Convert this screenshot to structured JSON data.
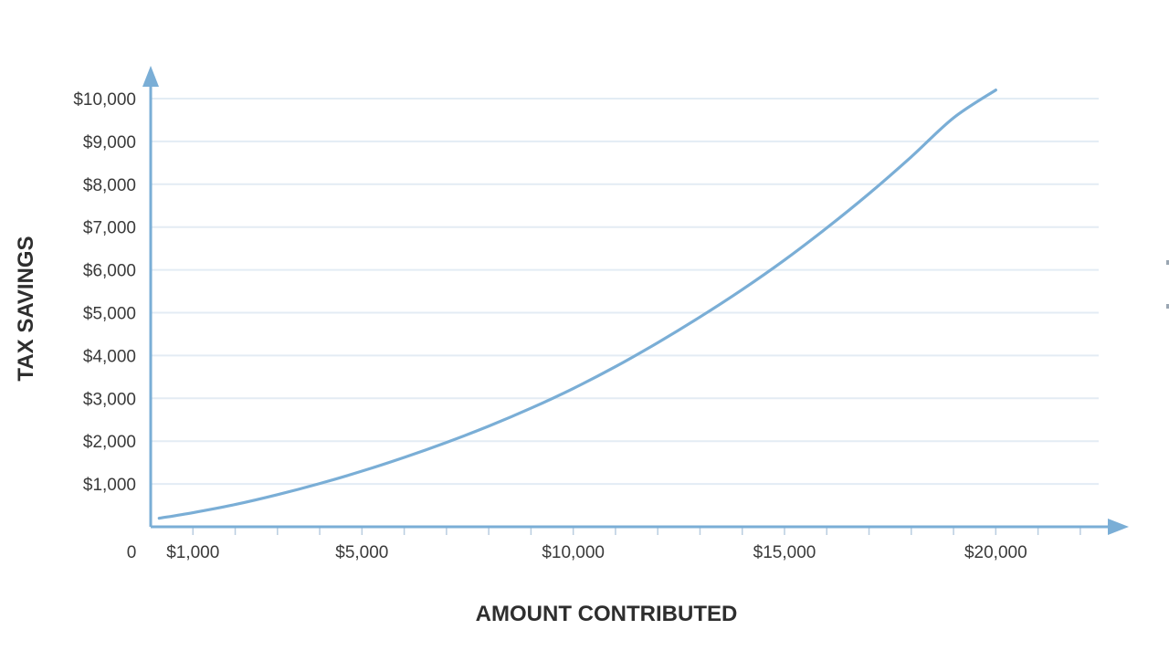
{
  "chart_data": {
    "type": "line",
    "xlabel": "AMOUNT CONTRIBUTED",
    "ylabel": "TAX SAVINGS",
    "origin_label": "0",
    "xlim": [
      0,
      22500
    ],
    "ylim": [
      0,
      10000
    ],
    "x_ticks": [
      {
        "value": 1000,
        "label": "$1,000"
      },
      {
        "value": 5000,
        "label": "$5,000"
      },
      {
        "value": 10000,
        "label": "$10,000"
      },
      {
        "value": 15000,
        "label": "$15,000"
      },
      {
        "value": 20000,
        "label": "$20,000"
      }
    ],
    "x_minor_ticks": [
      1000,
      2000,
      3000,
      4000,
      5000,
      6000,
      7000,
      8000,
      9000,
      10000,
      11000,
      12000,
      13000,
      14000,
      15000,
      16000,
      17000,
      18000,
      19000,
      20000,
      21000,
      22000
    ],
    "y_ticks": [
      {
        "value": 1000,
        "label": "$1,000"
      },
      {
        "value": 2000,
        "label": "$2,000"
      },
      {
        "value": 3000,
        "label": "$3,000"
      },
      {
        "value": 4000,
        "label": "$4,000"
      },
      {
        "value": 5000,
        "label": "$5,000"
      },
      {
        "value": 6000,
        "label": "$6,000"
      },
      {
        "value": 7000,
        "label": "$7,000"
      },
      {
        "value": 8000,
        "label": "$8,000"
      },
      {
        "value": 9000,
        "label": "$9,000"
      },
      {
        "value": 10000,
        "label": "$10,000"
      }
    ],
    "grid": true,
    "series": [
      {
        "x": [
          200,
          1000,
          2000,
          3000,
          4000,
          5000,
          6000,
          7000,
          8000,
          9000,
          10000,
          11000,
          12000,
          13000,
          14000,
          15000,
          16000,
          17000,
          18000,
          19000,
          20000
        ],
        "y": [
          200,
          330,
          520,
          750,
          1010,
          1300,
          1620,
          1970,
          2350,
          2770,
          3230,
          3740,
          4300,
          4900,
          5540,
          6230,
          6980,
          7780,
          8640,
          9550,
          10200
        ]
      }
    ],
    "colors": {
      "line": "#7aaed6",
      "axis": "#7aaed6",
      "grid": "#e3ecf4",
      "text": "#3a3a3a"
    }
  }
}
